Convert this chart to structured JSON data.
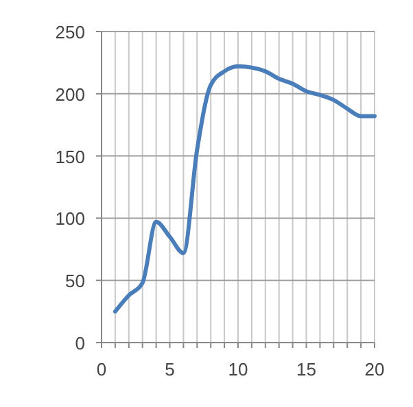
{
  "chart_data": {
    "type": "line",
    "x": [
      1,
      2,
      3,
      4,
      5,
      6,
      7,
      8,
      9,
      10,
      11,
      12,
      13,
      14,
      15,
      16,
      17,
      18,
      19,
      20
    ],
    "series": [
      {
        "color": "#4a7ebb",
        "values": [
          25,
          38,
          48,
          97,
          85,
          72,
          155,
          207,
          218,
          222,
          221,
          218,
          212,
          208,
          202,
          199,
          195,
          188,
          182,
          182
        ]
      }
    ],
    "xlim": [
      0,
      20
    ],
    "xticks": [
      0,
      {
        "value": 1,
        "label": null
      },
      {
        "value": 2,
        "label": null
      },
      {
        "value": 3,
        "label": null
      },
      {
        "value": 4,
        "label": null
      },
      5,
      {
        "value": 6,
        "label": null
      },
      {
        "value": 7,
        "label": null
      },
      {
        "value": 8,
        "label": null
      },
      {
        "value": 9,
        "label": null
      },
      10,
      {
        "value": 11,
        "label": null
      },
      {
        "value": 12,
        "label": null
      },
      {
        "value": 13,
        "label": null
      },
      {
        "value": 14,
        "label": null
      },
      15,
      {
        "value": 16,
        "label": null
      },
      {
        "value": 17,
        "label": null
      },
      {
        "value": 18,
        "label": null
      },
      {
        "value": 19,
        "label": null
      },
      20
    ],
    "ylim": [
      0,
      250
    ],
    "yticks": [
      0,
      50,
      100,
      150,
      200,
      250
    ],
    "grid": true,
    "marker": "none",
    "line_style": "solid"
  }
}
